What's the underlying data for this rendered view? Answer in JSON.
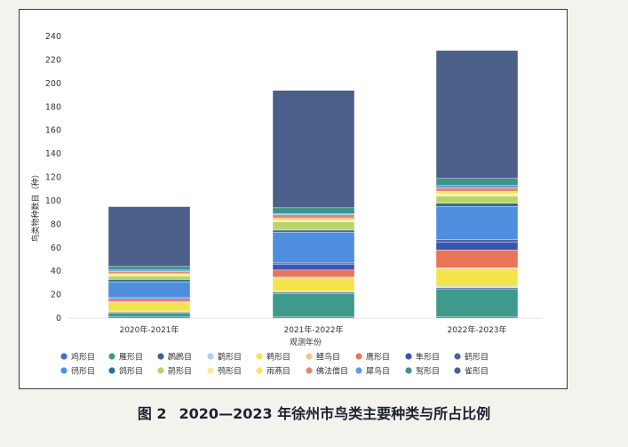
{
  "caption": {
    "label": "图 2",
    "text": "2020—2023 年徐州市鸟类主要种类与所占比例"
  },
  "chart_data": {
    "type": "bar",
    "stacked": true,
    "ylabel": "鸟类物种数目（种）",
    "xlabel": "观测年份",
    "categories": [
      "2020年-2021年",
      "2021年-2022年",
      "2022年-2023年"
    ],
    "ylim": [
      0,
      240
    ],
    "yticks": [
      0,
      20,
      40,
      60,
      80,
      100,
      120,
      140,
      160,
      180,
      200,
      220,
      240
    ],
    "grid": false,
    "legend_position": "bottom",
    "series": [
      {
        "name": "鸡形目",
        "color": "#3f6fc4",
        "values": [
          1,
          1,
          1
        ]
      },
      {
        "name": "雁形目",
        "color": "#3e9a8c",
        "values": [
          3,
          20,
          24
        ]
      },
      {
        "name": "䴙䴘目",
        "color": "#45609c",
        "values": [
          1,
          1,
          1
        ]
      },
      {
        "name": "鹳形目",
        "color": "#b8cdee",
        "values": [
          1,
          1,
          1
        ]
      },
      {
        "name": "鹈形目",
        "color": "#f3e44a",
        "values": [
          7,
          11,
          15
        ]
      },
      {
        "name": "鲣鸟目",
        "color": "#f2c784",
        "values": [
          1,
          1,
          1
        ]
      },
      {
        "name": "鹰形目",
        "color": "#e9755a",
        "values": [
          2,
          6,
          15
        ]
      },
      {
        "name": "隼形目",
        "color": "#3957b0",
        "values": [
          1,
          5,
          7
        ]
      },
      {
        "name": "鹤形目",
        "color": "#4a62aa",
        "values": [
          1,
          1,
          2
        ]
      },
      {
        "name": "鸻形目",
        "color": "#4f8ede",
        "values": [
          13,
          26,
          28
        ]
      },
      {
        "name": "鸽形目",
        "color": "#2f6f9c",
        "values": [
          2,
          2,
          3
        ]
      },
      {
        "name": "鹃形目",
        "color": "#b8d56a",
        "values": [
          3,
          7,
          6
        ]
      },
      {
        "name": "鸮形目",
        "color": "#f4ee9a",
        "values": [
          1,
          1,
          2
        ]
      },
      {
        "name": "雨燕目",
        "color": "#f7e26b",
        "values": [
          1,
          2,
          2
        ]
      },
      {
        "name": "佛法僧目",
        "color": "#e5866f",
        "values": [
          2,
          3,
          3
        ]
      },
      {
        "name": "犀鸟目",
        "color": "#5d9ee3",
        "values": [
          1,
          1,
          2
        ]
      },
      {
        "name": "䴕形目",
        "color": "#3c9487",
        "values": [
          3,
          5,
          6
        ]
      },
      {
        "name": "雀形目",
        "color": "#4b5f8a",
        "values": [
          51,
          100,
          109
        ]
      }
    ]
  }
}
